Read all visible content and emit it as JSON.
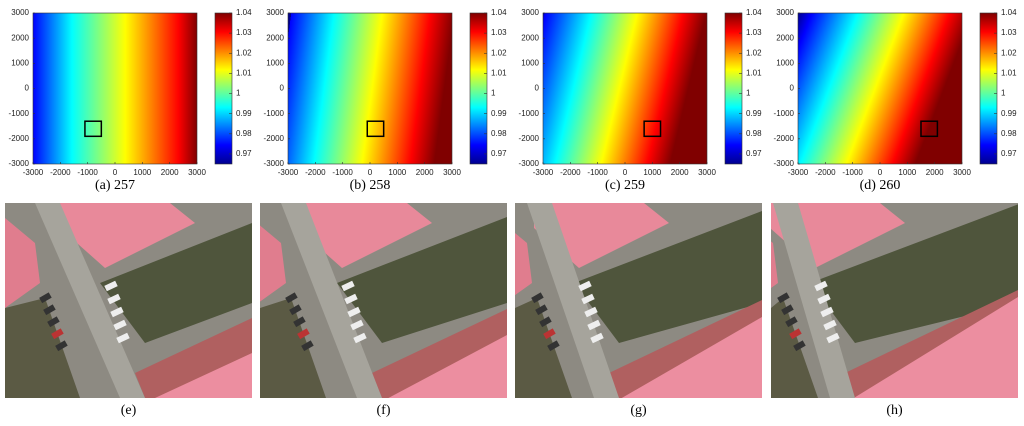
{
  "figure": {
    "axis": {
      "xlim": [
        -3000,
        3000
      ],
      "ylim": [
        -3000,
        3000
      ],
      "xticks": [
        -3000,
        -2000,
        -1000,
        0,
        1000,
        2000,
        3000
      ],
      "yticks": [
        -3000,
        -2000,
        -1000,
        0,
        1000,
        2000,
        3000
      ]
    },
    "colorbar": {
      "lim": [
        0.965,
        1.04
      ],
      "ticks": [
        0.97,
        0.98,
        0.99,
        1,
        1.01,
        1.02,
        1.03,
        1.04
      ]
    },
    "panels": [
      {
        "caption": "(a) 257"
      },
      {
        "caption": "(b) 258"
      },
      {
        "caption": "(c) 259"
      },
      {
        "caption": "(d) 260"
      }
    ],
    "photos": [
      {
        "caption": "(e)"
      },
      {
        "caption": "(f)"
      },
      {
        "caption": "(g)"
      },
      {
        "caption": "(h)"
      }
    ]
  }
}
